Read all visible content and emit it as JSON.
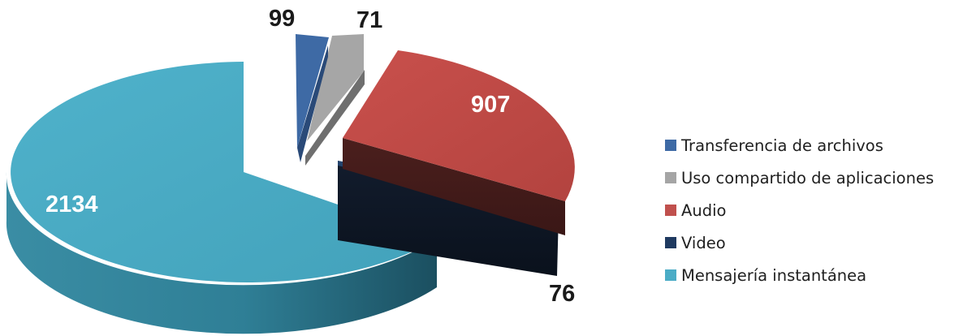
{
  "chart_data": {
    "type": "pie",
    "categories": [
      "Transferencia de archivos",
      "Uso compartido de aplicaciones",
      "Audio",
      "Video",
      "Mensajería instantánea"
    ],
    "values": [
      99,
      71,
      907,
      76,
      2134
    ],
    "colors": [
      "#3e6aa5",
      "#a5a5a5",
      "#c0504d",
      "#1f3a60",
      "#4bacc6"
    ],
    "exploded": [
      true,
      true,
      true,
      true,
      false
    ],
    "style": "3d-exploded",
    "legend_position": "right",
    "title": ""
  },
  "labels": {
    "transferencia": "99",
    "uso": "71",
    "audio": "907",
    "video": "76",
    "mensajeria": "2134"
  },
  "legend": {
    "items": [
      {
        "label": "Transferencia de archivos",
        "color": "#3e6aa5"
      },
      {
        "label": "Uso compartido de aplicaciones",
        "color": "#a5a5a5"
      },
      {
        "label": "Audio",
        "color": "#c0504d"
      },
      {
        "label": "Video",
        "color": "#1f3a60"
      },
      {
        "label": "Mensajería instantánea",
        "color": "#4bacc6"
      }
    ]
  }
}
